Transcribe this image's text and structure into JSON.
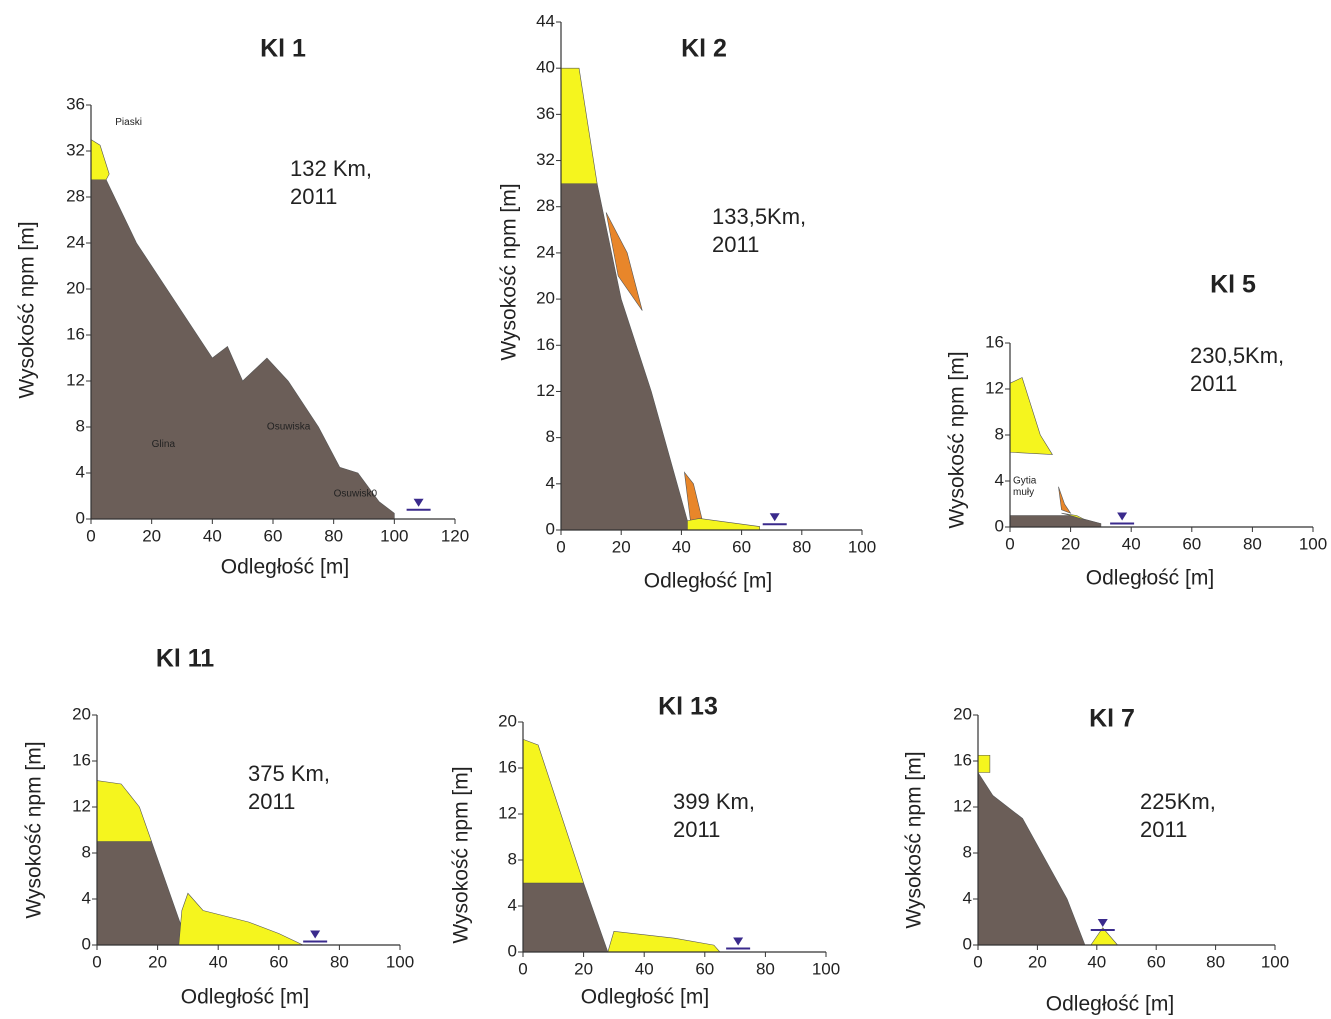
{
  "chart_data": [
    {
      "type": "profile",
      "title": "Kl 1",
      "note": [
        "132 Km,",
        "2011"
      ],
      "xlabel": "Odległość [m]",
      "ylabel": "Wysokość npm [m]",
      "xlim": [
        0,
        120
      ],
      "ylim": [
        0,
        36
      ],
      "xticks": [
        0,
        20,
        40,
        60,
        80,
        100,
        120
      ],
      "yticks": [
        0,
        4,
        8,
        12,
        16,
        20,
        24,
        28,
        32,
        36
      ],
      "labels": [
        "Piaski",
        "Glina",
        "Osuwiska",
        "Osuwisk0"
      ],
      "layers": [
        {
          "color": "#6b5e58",
          "x": [
            0,
            0,
            5,
            15,
            40,
            45,
            50,
            58,
            65,
            75,
            82,
            88,
            95,
            100,
            100
          ],
          "y": [
            0,
            29.5,
            29.5,
            24,
            14,
            15,
            12,
            14,
            12,
            8,
            4.5,
            4,
            1.5,
            0.5,
            0
          ]
        },
        {
          "color": "#f5f51e",
          "x": [
            0,
            0,
            3,
            6,
            5
          ],
          "y": [
            29.5,
            33,
            32.5,
            30,
            29.5
          ]
        }
      ],
      "water": {
        "x": 108,
        "y": 0.8
      }
    },
    {
      "type": "profile",
      "title": "Kl 2",
      "note": [
        "133,5Km,",
        "2011"
      ],
      "xlabel": "Odległość [m]",
      "ylabel": "Wysokość npm [m]",
      "xlim": [
        0,
        100
      ],
      "ylim": [
        0,
        44
      ],
      "xticks": [
        0,
        20,
        40,
        60,
        80,
        100
      ],
      "yticks": [
        0,
        4,
        8,
        12,
        16,
        20,
        24,
        28,
        32,
        36,
        40,
        44
      ],
      "labels": [],
      "layers": [
        {
          "color": "#6b5e58",
          "x": [
            0,
            0,
            12,
            20,
            30,
            42,
            42
          ],
          "y": [
            0,
            30,
            30,
            20,
            12,
            0.8,
            0
          ]
        },
        {
          "color": "#f5f51e",
          "x": [
            0,
            0,
            6,
            12
          ],
          "y": [
            30,
            40,
            40,
            30
          ]
        },
        {
          "color": "#e8862a",
          "x": [
            15,
            22,
            27,
            19
          ],
          "y": [
            27.5,
            24,
            19,
            22
          ]
        },
        {
          "color": "#e8862a",
          "x": [
            41,
            44,
            47,
            43
          ],
          "y": [
            5,
            4,
            0.8,
            0.8
          ]
        },
        {
          "color": "#f5f51e",
          "x": [
            42,
            46,
            66,
            66,
            42
          ],
          "y": [
            0.8,
            1,
            0.3,
            0,
            0
          ]
        }
      ],
      "water": {
        "x": 71,
        "y": 0.5
      }
    },
    {
      "type": "profile",
      "title": "Kl 5",
      "note": [
        "230,5Km,",
        "2011"
      ],
      "xlabel": "Odległość [m]",
      "ylabel": "Wysokość npm [m]",
      "xlim": [
        0,
        100
      ],
      "ylim": [
        0,
        16
      ],
      "xticks": [
        0,
        20,
        40,
        60,
        80,
        100
      ],
      "yticks": [
        0,
        4,
        8,
        12,
        16
      ],
      "labels": [
        "Gytia",
        "muły"
      ],
      "layers": [
        {
          "color": "#6b5e58",
          "x": [
            0,
            0,
            20,
            30,
            30
          ],
          "y": [
            0,
            1,
            1,
            0.3,
            0
          ]
        },
        {
          "color": "#f5f51e",
          "x": [
            0,
            0,
            4,
            10,
            14
          ],
          "y": [
            6.5,
            12.5,
            13,
            8,
            6.3
          ]
        },
        {
          "color": "#e8862a",
          "x": [
            16,
            18,
            20,
            17
          ],
          "y": [
            3.5,
            2,
            1.2,
            1.5
          ]
        },
        {
          "color": "#f5f51e",
          "x": [
            17,
            22,
            25,
            20
          ],
          "y": [
            1.2,
            1,
            0.6,
            1
          ]
        }
      ],
      "water": {
        "x": 37,
        "y": 0.3
      }
    },
    {
      "type": "profile",
      "title": "Kl 11",
      "note": [
        "375 Km,",
        "2011"
      ],
      "xlabel": "Odległość [m]",
      "ylabel": "Wysokość npm [m]",
      "xlim": [
        0,
        100
      ],
      "ylim": [
        0,
        20
      ],
      "xticks": [
        0,
        20,
        40,
        60,
        80,
        100
      ],
      "yticks": [
        0,
        4,
        8,
        12,
        16,
        20
      ],
      "labels": [],
      "layers": [
        {
          "color": "#6b5e58",
          "x": [
            0,
            0,
            18,
            30
          ],
          "y": [
            0,
            9,
            9,
            0
          ]
        },
        {
          "color": "#f5f51e",
          "x": [
            0,
            0,
            8,
            14,
            18
          ],
          "y": [
            9,
            14.3,
            14,
            12,
            9
          ]
        },
        {
          "color": "#f5f51e",
          "x": [
            27,
            28,
            30,
            35,
            50,
            60,
            68
          ],
          "y": [
            0,
            3,
            4.5,
            3,
            2,
            1,
            0
          ]
        }
      ],
      "water": {
        "x": 72,
        "y": 0.3
      }
    },
    {
      "type": "profile",
      "title": "Kl 13",
      "note": [
        "399 Km,",
        "2011"
      ],
      "xlabel": "Odległość [m]",
      "ylabel": "Wysokość npm [m]",
      "xlim": [
        0,
        100
      ],
      "ylim": [
        0,
        20
      ],
      "xticks": [
        0,
        20,
        40,
        60,
        80,
        100
      ],
      "yticks": [
        0,
        4,
        8,
        12,
        16,
        20
      ],
      "labels": [],
      "layers": [
        {
          "color": "#6b5e58",
          "x": [
            0,
            0,
            20,
            28
          ],
          "y": [
            0,
            6,
            6,
            0
          ]
        },
        {
          "color": "#f5f51e",
          "x": [
            0,
            0,
            5,
            20
          ],
          "y": [
            6,
            18.5,
            18,
            6
          ]
        },
        {
          "color": "#f5f51e",
          "x": [
            28,
            30,
            50,
            63,
            65
          ],
          "y": [
            0,
            1.8,
            1.2,
            0.6,
            0
          ]
        }
      ],
      "water": {
        "x": 71,
        "y": 0.3
      }
    },
    {
      "type": "profile",
      "title": "Kl 7",
      "note": [
        "225Km,",
        "2011"
      ],
      "xlabel": "Odległość [m]",
      "ylabel": "Wysokość npm [m]",
      "xlim": [
        0,
        100
      ],
      "ylim": [
        0,
        20
      ],
      "xticks": [
        0,
        20,
        40,
        60,
        80,
        100
      ],
      "yticks": [
        0,
        4,
        8,
        12,
        16,
        20
      ],
      "labels": [],
      "layers": [
        {
          "color": "#6b5e58",
          "x": [
            0,
            0,
            5,
            15,
            30,
            36
          ],
          "y": [
            0,
            15,
            13,
            11,
            4,
            0
          ]
        },
        {
          "color": "#f5f51e",
          "x": [
            0,
            0,
            4,
            4
          ],
          "y": [
            15,
            16.5,
            16.5,
            15
          ]
        },
        {
          "color": "#f5f51e",
          "x": [
            38,
            42,
            47
          ],
          "y": [
            0,
            1.5,
            0
          ]
        }
      ],
      "water": {
        "x": 42,
        "y": 1.3
      }
    }
  ]
}
